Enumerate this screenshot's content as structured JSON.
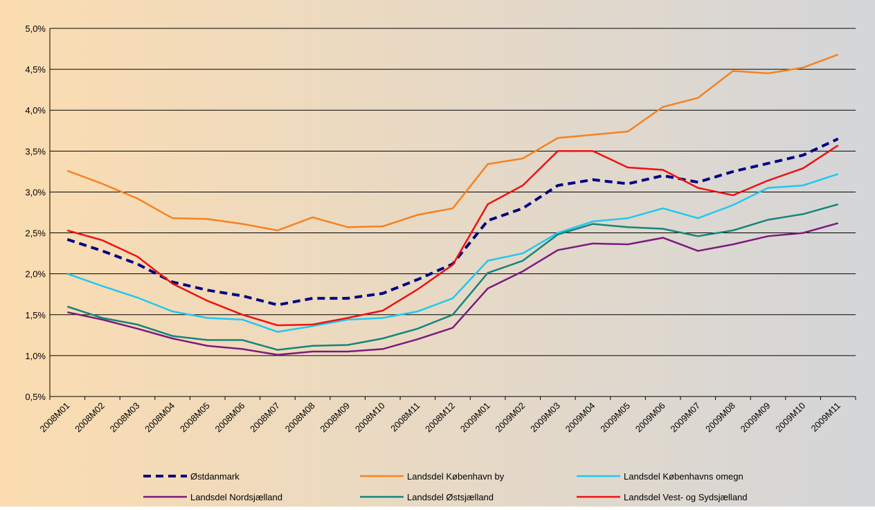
{
  "chart_data": {
    "type": "line",
    "categories": [
      "2008M01",
      "2008M02",
      "2008M03",
      "2008M04",
      "2008M05",
      "2008M06",
      "2008M07",
      "2008M08",
      "2008M09",
      "2008M10",
      "2008M11",
      "2008M12",
      "2009M01",
      "2009M02",
      "2009M03",
      "2009M04",
      "2009M05",
      "2009M06",
      "2009M07",
      "2009M08",
      "2009M09",
      "2009M10",
      "2009M11"
    ],
    "ylim": [
      0.5,
      5.0
    ],
    "yticks": [
      {
        "value": 0.5,
        "label": "0,5%"
      },
      {
        "value": 1.0,
        "label": "1,0%"
      },
      {
        "value": 1.5,
        "label": "1,5%"
      },
      {
        "value": 2.0,
        "label": "2,0%"
      },
      {
        "value": 2.5,
        "label": "2,5%"
      },
      {
        "value": 3.0,
        "label": "3,0%"
      },
      {
        "value": 3.5,
        "label": "3,5%"
      },
      {
        "value": 4.0,
        "label": "4,0%"
      },
      {
        "value": 4.5,
        "label": "4,5%"
      },
      {
        "value": 5.0,
        "label": "5,0%"
      }
    ],
    "grid": true,
    "legend": "bottom",
    "series": [
      {
        "name": "Østdanmark",
        "color": "#000080",
        "dashed": true,
        "values": [
          2.42,
          2.28,
          2.12,
          1.9,
          1.8,
          1.73,
          1.62,
          1.7,
          1.7,
          1.76,
          1.93,
          2.12,
          2.65,
          2.8,
          3.08,
          3.15,
          3.1,
          3.2,
          3.12,
          3.25,
          3.35,
          3.45,
          3.65
        ]
      },
      {
        "name": "Landsdel København by",
        "color": "#f58220",
        "values": [
          3.26,
          3.1,
          2.92,
          2.68,
          2.67,
          2.61,
          2.53,
          2.69,
          2.57,
          2.58,
          2.72,
          2.8,
          3.34,
          3.41,
          3.66,
          3.7,
          3.74,
          4.04,
          4.15,
          4.48,
          4.45,
          4.52,
          4.68
        ]
      },
      {
        "name": "Landsdel Københavns omegn",
        "color": "#1fc8f0",
        "values": [
          2.0,
          1.85,
          1.71,
          1.54,
          1.46,
          1.44,
          1.29,
          1.36,
          1.44,
          1.46,
          1.54,
          1.7,
          2.16,
          2.25,
          2.5,
          2.64,
          2.68,
          2.8,
          2.68,
          2.84,
          3.05,
          3.08,
          3.22
        ]
      },
      {
        "name": "Landsdel Nordsjælland",
        "color": "#7b1a7e",
        "values": [
          1.53,
          1.44,
          1.33,
          1.21,
          1.12,
          1.08,
          1.01,
          1.05,
          1.05,
          1.08,
          1.2,
          1.34,
          1.82,
          2.03,
          2.29,
          2.37,
          2.36,
          2.44,
          2.28,
          2.36,
          2.46,
          2.5,
          2.62
        ]
      },
      {
        "name": "Landsdel Østsjælland",
        "color": "#14857a",
        "values": [
          1.6,
          1.46,
          1.38,
          1.24,
          1.19,
          1.19,
          1.07,
          1.12,
          1.13,
          1.21,
          1.33,
          1.5,
          2.01,
          2.16,
          2.48,
          2.61,
          2.57,
          2.55,
          2.46,
          2.53,
          2.66,
          2.73,
          2.85
        ]
      },
      {
        "name": "Landsdel Vest- og Sydsjælland",
        "color": "#ee1111",
        "values": [
          2.53,
          2.41,
          2.21,
          1.88,
          1.67,
          1.5,
          1.37,
          1.38,
          1.46,
          1.55,
          1.81,
          2.11,
          2.85,
          3.08,
          3.5,
          3.5,
          3.3,
          3.27,
          3.05,
          2.96,
          3.14,
          3.29,
          3.57
        ]
      }
    ]
  }
}
